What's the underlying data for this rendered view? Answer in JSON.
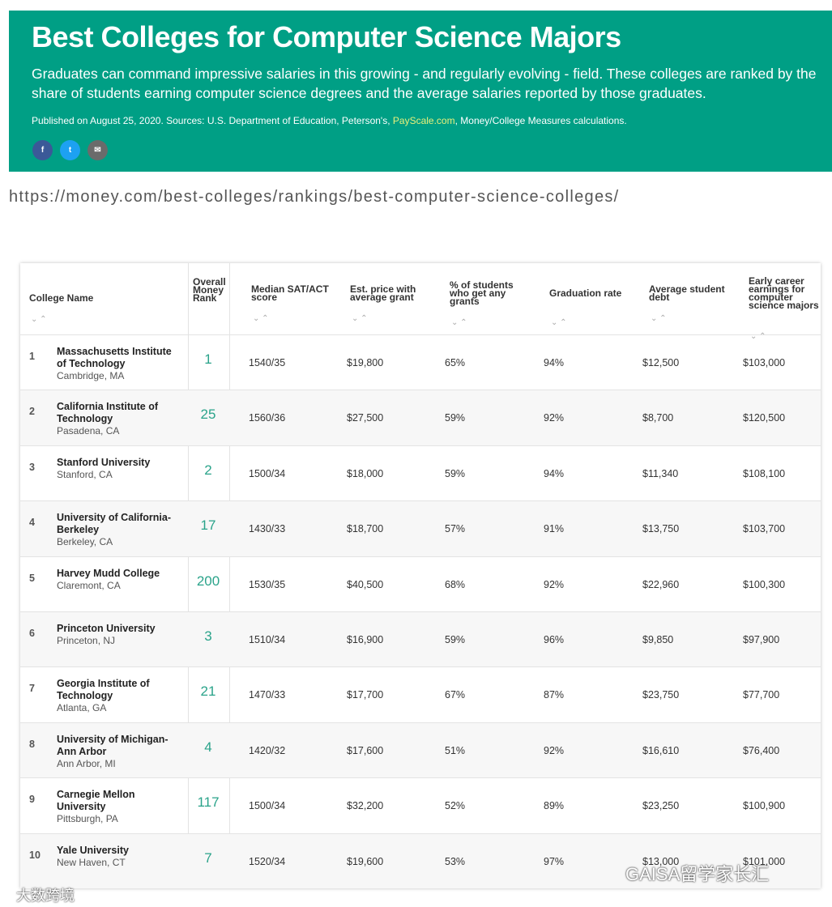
{
  "header": {
    "title": "Best Colleges for Computer Science Majors",
    "subtitle": "Graduates can command impressive salaries in this growing - and regularly evolving - field. These colleges are ranked by the share of students earning computer science degrees and the average salaries reported by those graduates.",
    "published": {
      "before": "Published on August 25, 2020. Sources: U.S. Department of Education, Peterson's, ",
      "link": "PayScale.com",
      "after": ", Money/College Measures calculations."
    }
  },
  "url": "https://money.com/best-colleges/rankings/best-computer-science-colleges/",
  "table": {
    "columns": [
      "College Name",
      "Overall Money Rank",
      "Median SAT/ACT score",
      "Est. price with average grant",
      "% of students who get any grants",
      "Graduation rate",
      "Average student debt",
      "Early career earnings for computer science majors"
    ],
    "rows": [
      {
        "rank": 1,
        "name": "Massachusetts Institute of Technology",
        "location": "Cambridge, MA",
        "money_rank": 1,
        "sat_act": "1540/35",
        "price": "$19,800",
        "grants": "65%",
        "graduation": "94%",
        "debt": "$12,500",
        "earnings": "$103,000"
      },
      {
        "rank": 2,
        "name": "California Institute of Technology",
        "location": "Pasadena, CA",
        "money_rank": 25,
        "sat_act": "1560/36",
        "price": "$27,500",
        "grants": "59%",
        "graduation": "92%",
        "debt": "$8,700",
        "earnings": "$120,500"
      },
      {
        "rank": 3,
        "name": "Stanford University",
        "location": "Stanford, CA",
        "money_rank": 2,
        "sat_act": "1500/34",
        "price": "$18,000",
        "grants": "59%",
        "graduation": "94%",
        "debt": "$11,340",
        "earnings": "$108,100"
      },
      {
        "rank": 4,
        "name": "University of California-Berkeley",
        "location": "Berkeley, CA",
        "money_rank": 17,
        "sat_act": "1430/33",
        "price": "$18,700",
        "grants": "57%",
        "graduation": "91%",
        "debt": "$13,750",
        "earnings": "$103,700"
      },
      {
        "rank": 5,
        "name": "Harvey Mudd College",
        "location": "Claremont, CA",
        "money_rank": 200,
        "sat_act": "1530/35",
        "price": "$40,500",
        "grants": "68%",
        "graduation": "92%",
        "debt": "$22,960",
        "earnings": "$100,300"
      },
      {
        "rank": 6,
        "name": "Princeton University",
        "location": "Princeton, NJ",
        "money_rank": 3,
        "sat_act": "1510/34",
        "price": "$16,900",
        "grants": "59%",
        "graduation": "96%",
        "debt": "$9,850",
        "earnings": "$97,900"
      },
      {
        "rank": 7,
        "name": "Georgia Institute of Technology",
        "location": "Atlanta, GA",
        "money_rank": 21,
        "sat_act": "1470/33",
        "price": "$17,700",
        "grants": "67%",
        "graduation": "87%",
        "debt": "$23,750",
        "earnings": "$77,700"
      },
      {
        "rank": 8,
        "name": "University of Michigan-Ann Arbor",
        "location": "Ann Arbor, MI",
        "money_rank": 4,
        "sat_act": "1420/32",
        "price": "$17,600",
        "grants": "51%",
        "graduation": "92%",
        "debt": "$16,610",
        "earnings": "$76,400"
      },
      {
        "rank": 9,
        "name": "Carnegie Mellon University",
        "location": "Pittsburgh, PA",
        "money_rank": 117,
        "sat_act": "1500/34",
        "price": "$32,200",
        "grants": "52%",
        "graduation": "89%",
        "debt": "$23,250",
        "earnings": "$100,900"
      },
      {
        "rank": 10,
        "name": "Yale University",
        "location": "New Haven, CT",
        "money_rank": 7,
        "sat_act": "1520/34",
        "price": "$19,600",
        "grants": "53%",
        "graduation": "97%",
        "debt": "$13,000",
        "earnings": "$101,000"
      }
    ]
  },
  "watermarks": [
    "GAISA留学家长汇",
    "大数跨境"
  ]
}
